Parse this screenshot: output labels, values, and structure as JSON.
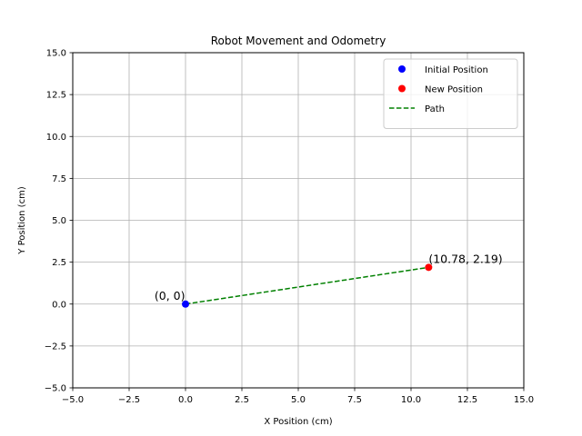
{
  "chart_data": {
    "type": "scatter",
    "title": "Robot Movement and Odometry",
    "xlabel": "X Position (cm)",
    "ylabel": "Y Position (cm)",
    "xlim": [
      -5,
      15
    ],
    "ylim": [
      -5,
      15
    ],
    "xticks": [
      -5.0,
      -2.5,
      0.0,
      2.5,
      5.0,
      7.5,
      10.0,
      12.5,
      15.0
    ],
    "yticks": [
      -5.0,
      -2.5,
      0.0,
      2.5,
      5.0,
      7.5,
      10.0,
      12.5,
      15.0
    ],
    "xtick_labels": [
      "−5.0",
      "−2.5",
      "0.0",
      "2.5",
      "5.0",
      "7.5",
      "10.0",
      "12.5",
      "15.0"
    ],
    "ytick_labels": [
      "−5.0",
      "−2.5",
      "0.0",
      "2.5",
      "5.0",
      "7.5",
      "10.0",
      "12.5",
      "15.0"
    ],
    "grid": true,
    "legend_position": "top-right",
    "series": [
      {
        "name": "Initial Position",
        "kind": "point",
        "color": "#0000ff",
        "x": [
          0
        ],
        "y": [
          0
        ]
      },
      {
        "name": "New Position",
        "kind": "point",
        "color": "#ff0000",
        "x": [
          10.78
        ],
        "y": [
          2.19
        ]
      },
      {
        "name": "Path",
        "kind": "dashed-line",
        "color": "#008000",
        "x": [
          0,
          10.78
        ],
        "y": [
          0,
          2.19
        ]
      }
    ],
    "annotations": [
      {
        "text": "(0, 0)",
        "x": 0,
        "y": 0,
        "anchor": "end"
      },
      {
        "text": "(10.78, 2.19)",
        "x": 10.78,
        "y": 2.19,
        "anchor": "start"
      }
    ]
  }
}
